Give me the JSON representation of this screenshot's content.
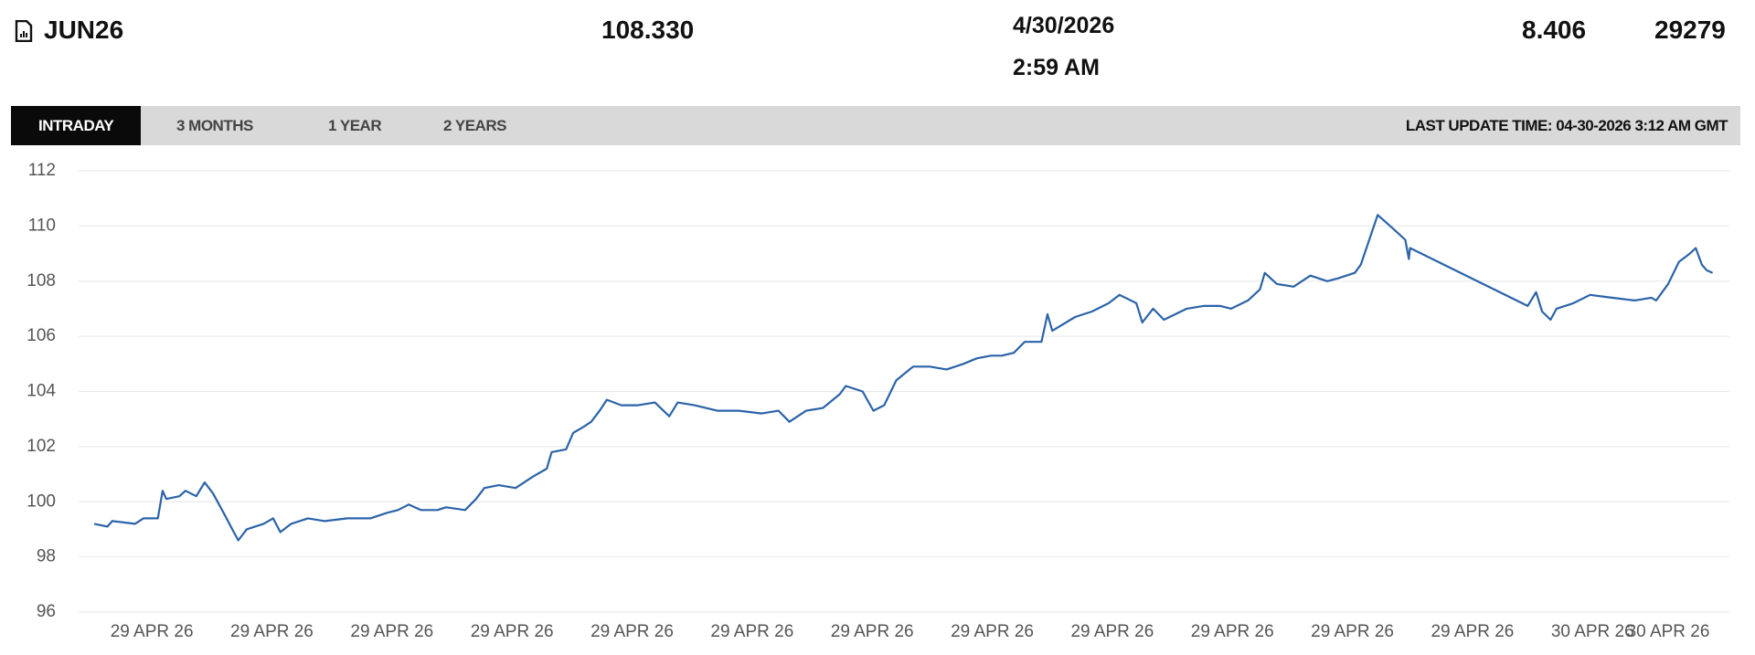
{
  "header": {
    "symbol": "JUN26",
    "last": "108.330",
    "date": "4/30/2026",
    "time": "2:59 AM",
    "change": "8.406",
    "volume": "29279"
  },
  "tabs": [
    "INTRADAY",
    "3 MONTHS",
    "1 YEAR",
    "2 YEARS"
  ],
  "last_update": "LAST UPDATE TIME: 04-30-2026 3:12 AM GMT",
  "chart_data": {
    "type": "line",
    "x": [
      -0.48,
      -0.37,
      -0.33,
      -0.14,
      -0.07,
      0.05,
      0.09,
      0.12,
      0.23,
      0.28,
      0.37,
      0.44,
      0.51,
      0.61,
      0.67,
      0.72,
      0.79,
      0.93,
      1.01,
      1.07,
      1.16,
      1.3,
      1.44,
      1.63,
      1.82,
      1.96,
      2.05,
      2.14,
      2.24,
      2.38,
      2.45,
      2.61,
      2.7,
      2.77,
      2.89,
      3.03,
      3.17,
      3.29,
      3.33,
      3.45,
      3.51,
      3.59,
      3.66,
      3.73,
      3.79,
      3.91,
      4.05,
      4.19,
      4.31,
      4.38,
      4.52,
      4.71,
      4.89,
      5.08,
      5.22,
      5.31,
      5.45,
      5.59,
      5.73,
      5.78,
      5.92,
      6.01,
      6.1,
      6.2,
      6.34,
      6.48,
      6.62,
      6.76,
      6.87,
      6.99,
      7.08,
      7.18,
      7.27,
      7.41,
      7.46,
      7.5,
      7.69,
      7.83,
      7.97,
      8.06,
      8.2,
      8.25,
      8.34,
      8.43,
      8.62,
      8.76,
      8.9,
      8.99,
      9.13,
      9.23,
      9.27,
      9.37,
      9.51,
      9.65,
      9.79,
      9.88,
      10.02,
      10.07,
      10.21,
      10.34,
      10.44,
      10.47,
      10.48,
      11.46,
      11.53,
      11.58,
      11.65,
      11.7,
      11.84,
      11.98,
      12.16,
      12.35,
      12.49,
      12.53,
      12.63,
      12.72,
      12.81,
      12.86,
      12.91,
      12.95,
      13.0
    ],
    "series": [
      {
        "color": "#2b63a8",
        "values": [
          99.2,
          99.1,
          99.3,
          99.2,
          99.4,
          99.4,
          100.4,
          100.1,
          100.2,
          100.4,
          100.2,
          100.7,
          100.3,
          99.5,
          99.0,
          98.6,
          99.0,
          99.2,
          99.4,
          98.9,
          99.2,
          99.4,
          99.3,
          99.4,
          99.4,
          99.6,
          99.7,
          99.9,
          99.7,
          99.7,
          99.8,
          99.7,
          100.1,
          100.5,
          100.6,
          100.5,
          100.9,
          101.2,
          101.8,
          101.9,
          102.5,
          102.7,
          102.9,
          103.3,
          103.7,
          103.5,
          103.5,
          103.6,
          103.1,
          103.6,
          103.5,
          103.3,
          103.3,
          103.2,
          103.3,
          102.9,
          103.3,
          103.4,
          103.9,
          104.2,
          104.0,
          103.3,
          103.5,
          104.4,
          104.9,
          104.9,
          104.8,
          105.0,
          105.2,
          105.3,
          105.3,
          105.4,
          105.8,
          105.8,
          106.8,
          106.2,
          106.7,
          106.9,
          107.2,
          107.5,
          107.2,
          106.5,
          107.0,
          106.6,
          107.0,
          107.1,
          107.1,
          107.0,
          107.3,
          107.7,
          108.3,
          107.9,
          107.8,
          108.2,
          108.0,
          108.1,
          108.3,
          108.6,
          110.4,
          109.9,
          109.5,
          108.8,
          109.2,
          107.1,
          107.6,
          106.9,
          106.6,
          107.0,
          107.2,
          107.5,
          107.4,
          107.3,
          107.4,
          107.3,
          107.9,
          108.7,
          109.0,
          109.2,
          108.6,
          108.4,
          108.3
        ]
      }
    ],
    "xlim": [
      -0.61,
      13.14
    ],
    "xticks": [
      {
        "value": 0,
        "label": "29 APR 26"
      },
      {
        "value": 1,
        "label": "29 APR 26"
      },
      {
        "value": 2,
        "label": "29 APR 26"
      },
      {
        "value": 3,
        "label": "29 APR 26"
      },
      {
        "value": 4,
        "label": "29 APR 26"
      },
      {
        "value": 5,
        "label": "29 APR 26"
      },
      {
        "value": 6,
        "label": "29 APR 26"
      },
      {
        "value": 7,
        "label": "29 APR 26"
      },
      {
        "value": 8,
        "label": "29 APR 26"
      },
      {
        "value": 9,
        "label": "29 APR 26"
      },
      {
        "value": 10,
        "label": "29 APR 26"
      },
      {
        "value": 11,
        "label": "29 APR 26"
      },
      {
        "value": 12,
        "label": "30 APR 26"
      },
      {
        "value": 12.63,
        "label": "30 APR 26"
      }
    ],
    "ylim": [
      96,
      112
    ],
    "yticks": [
      96,
      98,
      100,
      102,
      104,
      106,
      108,
      110,
      112
    ],
    "grid": true
  }
}
